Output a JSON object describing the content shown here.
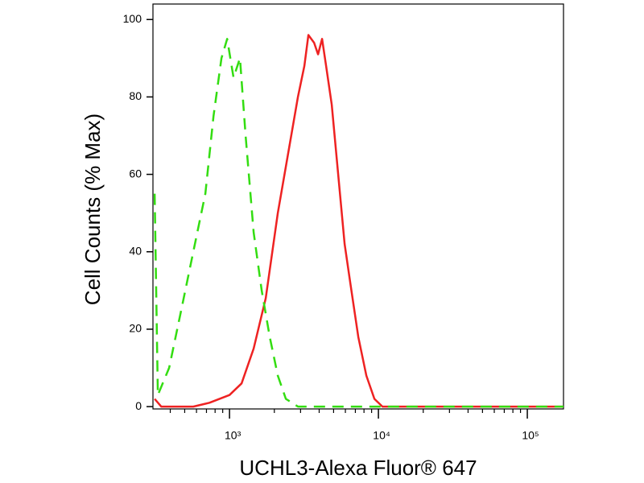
{
  "chart_data": {
    "type": "line",
    "x_label": "UCHL3-Alexa Fluor® 647",
    "y_label": "Cell Counts (% Max)",
    "x_log": true,
    "xlim": [
      306,
      175000
    ],
    "xticks": [
      {
        "value": 1000,
        "label": "10³"
      },
      {
        "value": 10000,
        "label": "10⁴"
      },
      {
        "value": 100000,
        "label": "10⁵"
      }
    ],
    "ylim": [
      -0.6,
      104
    ],
    "yticks": [
      0,
      20,
      40,
      60,
      80,
      100
    ],
    "series": [
      {
        "color": "#ee2222",
        "dash": false,
        "x": [
          314,
          348,
          571,
          733,
          1000,
          1205,
          1453,
          1751,
          2110,
          2543,
          2880,
          3183,
          3388,
          3698,
          3933,
          4185,
          4453,
          4856,
          5370,
          5929,
          6471,
          7328,
          8298,
          9397,
          10640,
          175000
        ],
        "values": [
          2,
          0,
          0,
          1,
          3,
          6,
          15,
          28,
          50,
          68,
          80,
          88,
          96,
          94,
          91,
          95,
          88,
          78,
          60,
          42,
          32,
          18,
          8,
          2,
          0,
          0
        ]
      },
      {
        "color": "#33dd11",
        "dash": true,
        "x": [
          314,
          330,
          393,
          474,
          571,
          688,
          780,
          883,
          964,
          1064,
          1175,
          1282,
          1453,
          1645,
          1864,
          2110,
          2390,
          2880,
          175000
        ],
        "values": [
          55,
          3,
          10,
          25,
          40,
          55,
          75,
          90,
          95,
          85,
          90,
          70,
          45,
          30,
          18,
          8,
          2,
          0,
          0
        ]
      }
    ]
  }
}
